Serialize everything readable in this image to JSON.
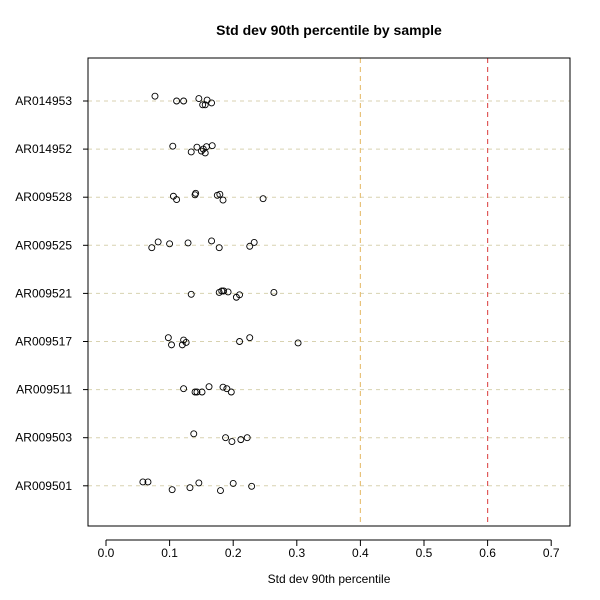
{
  "chart_data": {
    "type": "scatter",
    "title": "Std dev 90th percentile by sample",
    "xlabel": "Std dev 90th percentile",
    "ylabel": "",
    "xlim": [
      -0.025,
      0.73
    ],
    "xticks": [
      0.0,
      0.1,
      0.2,
      0.3,
      0.4,
      0.5,
      0.6,
      0.7
    ],
    "xtick_labels": [
      "0.0",
      "0.1",
      "0.2",
      "0.3",
      "0.4",
      "0.5",
      "0.6",
      "0.7"
    ],
    "grid": "horizontal dashed at each category",
    "reference_lines": [
      {
        "x": 0.4,
        "color": "#e8c27a"
      },
      {
        "x": 0.6,
        "color": "#e05a5a"
      }
    ],
    "categories": [
      "AR014953",
      "AR014952",
      "AR009528",
      "AR009525",
      "AR009521",
      "AR009517",
      "AR009511",
      "AR009503",
      "AR009501"
    ],
    "points": [
      {
        "category": "AR014953",
        "values": [
          0.077,
          0.111,
          0.122,
          0.146,
          0.152,
          0.156,
          0.159,
          0.166
        ],
        "offsets": [
          -0.1,
          0.0,
          0.0,
          -0.05,
          0.08,
          0.08,
          -0.02,
          0.04
        ]
      },
      {
        "category": "AR014952",
        "values": [
          0.105,
          0.134,
          0.143,
          0.15,
          0.153,
          0.156,
          0.158,
          0.167
        ],
        "offsets": [
          -0.06,
          0.06,
          -0.04,
          0.04,
          0.0,
          0.08,
          -0.05,
          -0.07
        ]
      },
      {
        "category": "AR009528",
        "values": [
          0.106,
          0.111,
          0.14,
          0.141,
          0.175,
          0.179,
          0.184,
          0.247
        ],
        "offsets": [
          -0.02,
          0.05,
          -0.05,
          -0.08,
          -0.04,
          -0.06,
          0.06,
          0.03
        ]
      },
      {
        "category": "AR009525",
        "values": [
          0.072,
          0.082,
          0.1,
          0.129,
          0.166,
          0.178,
          0.226,
          0.233
        ],
        "offsets": [
          0.05,
          -0.07,
          -0.03,
          -0.05,
          -0.09,
          0.05,
          0.02,
          -0.06
        ]
      },
      {
        "category": "AR009521",
        "values": [
          0.134,
          0.178,
          0.182,
          0.185,
          0.192,
          0.205,
          0.21,
          0.264
        ],
        "offsets": [
          0.02,
          -0.02,
          -0.05,
          -0.05,
          -0.03,
          0.08,
          0.03,
          -0.02
        ]
      },
      {
        "category": "AR009517",
        "values": [
          0.098,
          0.103,
          0.12,
          0.122,
          0.126,
          0.21,
          0.226,
          0.302
        ],
        "offsets": [
          -0.08,
          0.07,
          0.07,
          -0.03,
          0.02,
          0.0,
          -0.08,
          0.03
        ]
      },
      {
        "category": "AR009511",
        "values": [
          0.122,
          0.14,
          0.143,
          0.151,
          0.162,
          0.184,
          0.19,
          0.197
        ],
        "offsets": [
          -0.02,
          0.05,
          0.05,
          0.05,
          -0.06,
          -0.05,
          -0.02,
          0.05
        ]
      },
      {
        "category": "AR009503",
        "values": [
          0.138,
          0.188,
          0.198,
          0.212,
          0.222
        ],
        "offsets": [
          -0.08,
          0.0,
          0.08,
          0.04,
          0.0
        ]
      },
      {
        "category": "AR009501",
        "values": [
          0.058,
          0.066,
          0.104,
          0.132,
          0.146,
          0.18,
          0.2,
          0.229
        ],
        "offsets": [
          -0.08,
          -0.08,
          0.08,
          0.04,
          -0.06,
          0.1,
          -0.05,
          0.01
        ]
      }
    ]
  }
}
